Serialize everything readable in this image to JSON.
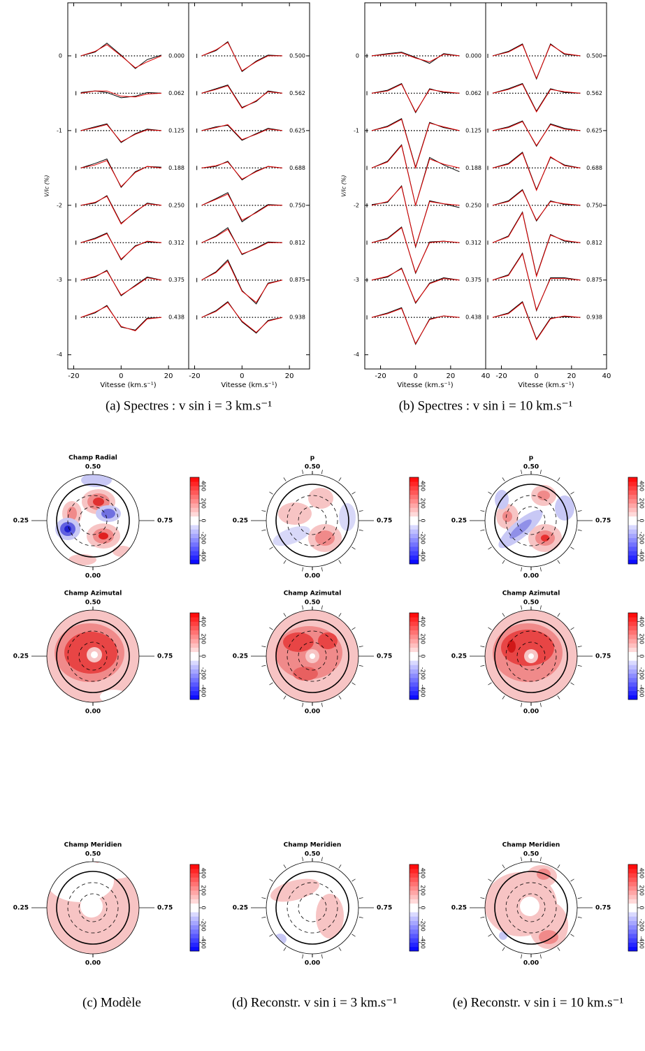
{
  "spectra": [
    {
      "caption": "(a) Spectres : v sin i = 3 km.s⁻¹",
      "ylabel": "V/Ic (%)",
      "xlabel": "Vitesse (km.s⁻¹)",
      "xlim": [
        -22.5,
        28.5
      ],
      "ylim": [
        -4.19,
        0.71
      ],
      "xticks": [
        -20,
        0,
        20
      ],
      "yticks": [
        0,
        -1,
        -2,
        -3,
        -4
      ],
      "x": [
        -17,
        -11,
        -6,
        0,
        6,
        11,
        17
      ],
      "columns": [
        {
          "phases": [
            "0.000",
            "0.062",
            "0.125",
            "0.188",
            "0.250",
            "0.312",
            "0.375",
            "0.438"
          ],
          "obs": [
            [
              0,
              0.05,
              0.17,
              0.01,
              -0.17,
              -0.05,
              0.01
            ],
            [
              0.01,
              0.03,
              0.01,
              -0.06,
              -0.04,
              0.01,
              0
            ],
            [
              0,
              0.05,
              0.09,
              -0.16,
              -0.04,
              0.02,
              0
            ],
            [
              0,
              0.06,
              0.12,
              -0.26,
              -0.05,
              0.02,
              0.01
            ],
            [
              0,
              0.03,
              0.13,
              -0.24,
              -0.09,
              0.03,
              0
            ],
            [
              0,
              0.06,
              0.13,
              -0.23,
              -0.04,
              0.01,
              0
            ],
            [
              0,
              0.04,
              0.13,
              -0.21,
              -0.07,
              0.04,
              0
            ],
            [
              0,
              0.06,
              0.16,
              -0.13,
              -0.17,
              -0.01,
              0
            ]
          ],
          "model": [
            [
              0,
              0.06,
              0.15,
              0,
              -0.16,
              -0.08,
              0
            ],
            [
              0,
              0.03,
              0.03,
              -0.04,
              -0.05,
              -0.01,
              0
            ],
            [
              0,
              0.04,
              0.08,
              -0.15,
              -0.05,
              0.01,
              0
            ],
            [
              0,
              0.04,
              0.1,
              -0.25,
              -0.06,
              0.02,
              0
            ],
            [
              0,
              0.04,
              0.12,
              -0.25,
              -0.08,
              0.02,
              0
            ],
            [
              0,
              0.05,
              0.12,
              -0.22,
              -0.05,
              0.02,
              0
            ],
            [
              0,
              0.05,
              0.12,
              -0.2,
              -0.08,
              0.03,
              0
            ],
            [
              0,
              0.07,
              0.15,
              -0.12,
              -0.18,
              -0.02,
              0
            ]
          ]
        },
        {
          "phases": [
            "0.500",
            "0.562",
            "0.625",
            "0.688",
            "0.750",
            "0.812",
            "0.875",
            "0.938"
          ],
          "obs": [
            [
              0,
              0.07,
              0.19,
              -0.21,
              -0.07,
              0.01,
              0
            ],
            [
              0,
              0.06,
              0.11,
              -0.19,
              -0.11,
              0.03,
              0
            ],
            [
              0,
              0.05,
              0.07,
              -0.13,
              -0.04,
              0.03,
              0
            ],
            [
              0,
              0.02,
              0.09,
              -0.16,
              -0.04,
              0.02,
              0
            ],
            [
              0,
              0.09,
              0.17,
              -0.22,
              -0.09,
              0.01,
              0
            ],
            [
              0,
              0.09,
              0.2,
              -0.16,
              -0.07,
              0.01,
              0
            ],
            [
              0,
              0.11,
              0.27,
              -0.14,
              -0.32,
              -0.04,
              0
            ],
            [
              0,
              0.09,
              0.21,
              -0.06,
              -0.21,
              -0.04,
              0
            ]
          ],
          "model": [
            [
              0,
              0.08,
              0.18,
              -0.2,
              -0.08,
              0,
              0
            ],
            [
              0,
              0.05,
              0.1,
              -0.2,
              -0.1,
              0.02,
              0
            ],
            [
              0,
              0.04,
              0.08,
              -0.12,
              -0.05,
              0.02,
              0
            ],
            [
              0,
              0.03,
              0.08,
              -0.15,
              -0.05,
              0.02,
              0
            ],
            [
              0,
              0.08,
              0.15,
              -0.2,
              -0.1,
              0,
              0
            ],
            [
              0,
              0.08,
              0.18,
              -0.15,
              -0.08,
              0,
              0
            ],
            [
              0,
              0.1,
              0.25,
              -0.15,
              -0.3,
              -0.05,
              0
            ],
            [
              0,
              0.08,
              0.2,
              -0.05,
              -0.2,
              -0.05,
              0
            ]
          ]
        }
      ]
    },
    {
      "caption": "(b) Spectres : v sin i = 10 km.s⁻¹",
      "ylabel": "V/Ic (%)",
      "xlabel": "Vitesse (km.s⁻¹)",
      "xlim": [
        -29,
        40
      ],
      "ylim": [
        -4.19,
        0.71
      ],
      "xticks": [
        -20,
        0,
        20,
        40
      ],
      "yticks": [
        0,
        -1,
        -2,
        -3,
        -4
      ],
      "x": [
        -25,
        -16,
        -8,
        0,
        8,
        16,
        25
      ],
      "columns": [
        {
          "phases": [
            "0.000",
            "0.062",
            "0.125",
            "0.188",
            "0.250",
            "0.312",
            "0.375",
            "0.438"
          ],
          "obs": [
            [
              0,
              0.03,
              0.05,
              -0.02,
              -0.1,
              0.03,
              0
            ],
            [
              0,
              0.04,
              0.13,
              -0.26,
              0.06,
              0.01,
              0
            ],
            [
              0,
              0.06,
              0.16,
              -0.49,
              0.11,
              0.04,
              0
            ],
            [
              0,
              0.09,
              0.31,
              -0.5,
              0.14,
              0.04,
              -0.05
            ],
            [
              0.01,
              0.04,
              0.26,
              -0.56,
              0.06,
              0.02,
              -0.03
            ],
            [
              0,
              0.06,
              0.21,
              -0.41,
              0.01,
              0.02,
              0
            ],
            [
              0,
              0.04,
              0.16,
              -0.31,
              -0.04,
              0.03,
              0
            ],
            [
              0,
              0.06,
              0.13,
              -0.36,
              -0.02,
              0.02,
              0
            ]
          ],
          "model": [
            [
              0,
              0.02,
              0.04,
              -0.03,
              -0.08,
              0.02,
              0
            ],
            [
              0,
              0.03,
              0.12,
              -0.25,
              0.05,
              0.02,
              0
            ],
            [
              0,
              0.05,
              0.15,
              -0.5,
              0.1,
              0.05,
              0
            ],
            [
              0,
              0.08,
              0.3,
              -0.5,
              0.12,
              0.05,
              0
            ],
            [
              0,
              0.05,
              0.25,
              -0.55,
              0.05,
              0.02,
              0
            ],
            [
              0,
              0.05,
              0.2,
              -0.4,
              0,
              0.02,
              0
            ],
            [
              0,
              0.05,
              0.15,
              -0.3,
              -0.05,
              0.02,
              0
            ],
            [
              0,
              0.05,
              0.12,
              -0.35,
              -0.03,
              0.02,
              0
            ]
          ]
        },
        {
          "phases": [
            "0.500",
            "0.562",
            "0.625",
            "0.688",
            "0.750",
            "0.812",
            "0.875",
            "0.938"
          ],
          "obs": [
            [
              0,
              0.06,
              0.16,
              -0.31,
              0.16,
              0.02,
              0
            ],
            [
              0,
              0.06,
              0.13,
              -0.24,
              0.06,
              0.01,
              0
            ],
            [
              0,
              0.05,
              0.13,
              -0.21,
              0.09,
              0.03,
              0
            ],
            [
              0,
              0.06,
              0.21,
              -0.29,
              0.14,
              0.04,
              0
            ],
            [
              0,
              0.06,
              0.21,
              -0.21,
              0.06,
              0.01,
              0
            ],
            [
              0,
              0.09,
              0.41,
              -0.44,
              0.11,
              0.02,
              0
            ],
            [
              0,
              0.07,
              0.36,
              -0.41,
              0.03,
              0.03,
              0
            ],
            [
              0,
              0.06,
              0.21,
              -0.29,
              -0.01,
              0.01,
              0
            ]
          ],
          "model": [
            [
              0,
              0.05,
              0.15,
              -0.3,
              0.15,
              0.03,
              0
            ],
            [
              0,
              0.05,
              0.12,
              -0.25,
              0.05,
              0.02,
              0
            ],
            [
              0,
              0.04,
              0.12,
              -0.2,
              0.08,
              0.02,
              0
            ],
            [
              0,
              0.05,
              0.2,
              -0.3,
              0.15,
              0.03,
              0
            ],
            [
              0,
              0.05,
              0.2,
              -0.2,
              0.05,
              0.02,
              0
            ],
            [
              0,
              0.08,
              0.4,
              -0.45,
              0.1,
              0.03,
              0
            ],
            [
              0,
              0.06,
              0.35,
              -0.4,
              0.02,
              0.02,
              0
            ],
            [
              0,
              0.05,
              0.2,
              -0.3,
              -0.02,
              0.02,
              0
            ]
          ]
        }
      ]
    }
  ],
  "maps": {
    "titles": [
      [
        "Champ Radial",
        "p",
        "p"
      ],
      [
        "Champ Azimutal",
        "Champ Azimutal",
        "Champ Azimutal"
      ],
      [
        "Champ Meridien",
        "Champ Meridien",
        "Champ Meridien"
      ]
    ],
    "phase_labels": {
      "top": "0.50",
      "left": "0.25",
      "right": "0.75",
      "bottom": "0.00"
    },
    "colorbar": {
      "lim": [
        -500,
        500
      ],
      "ticks": [
        400,
        200,
        0,
        -200,
        -400
      ]
    },
    "captions": [
      "(c) Modèle",
      "(d) Reconstr. v sin i = 3 km.s⁻¹",
      "(e) Reconstr. v sin i = 10 km.s⁻¹"
    ]
  }
}
